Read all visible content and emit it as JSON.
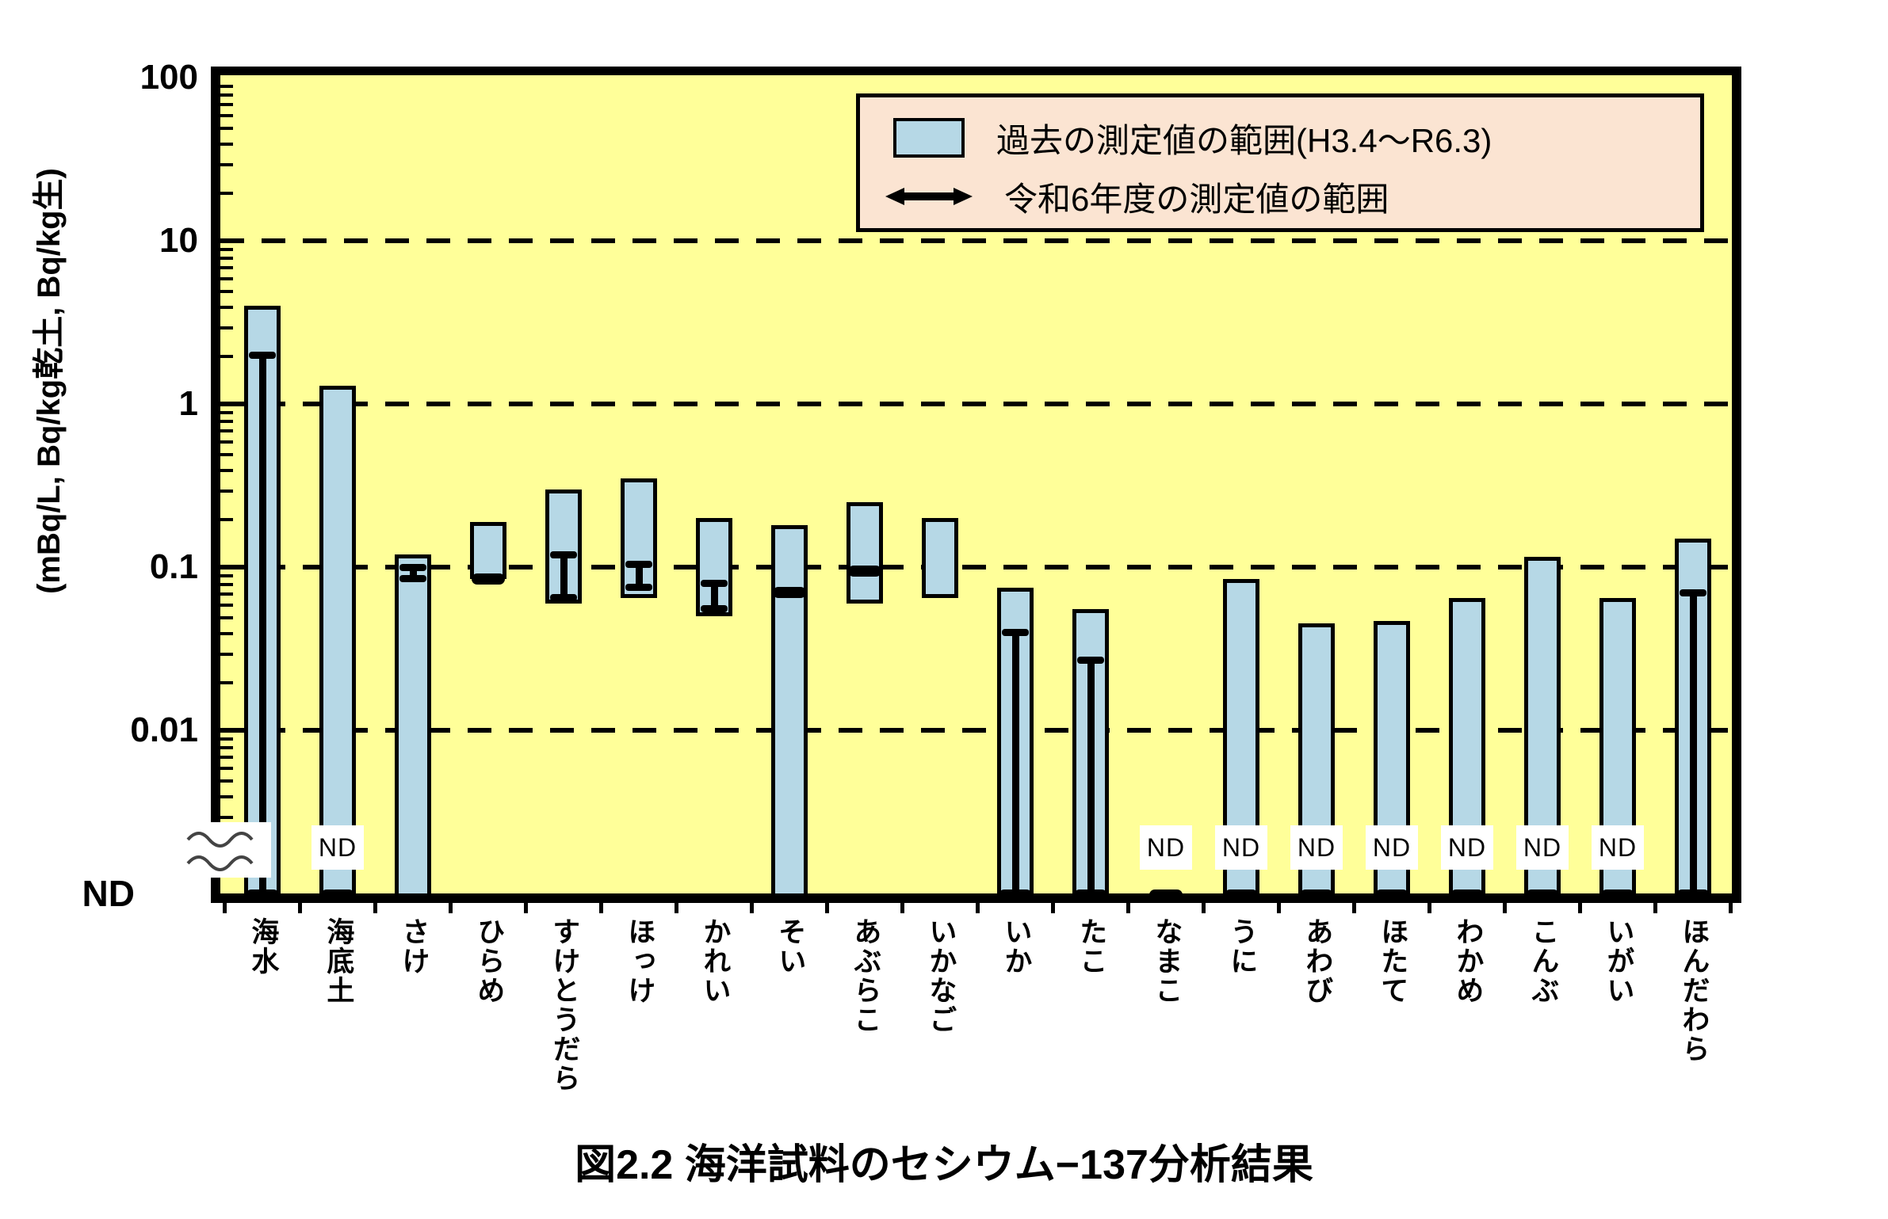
{
  "figure_title": "図2.2 海洋試料のセシウム−137分析結果",
  "chart_data": {
    "type": "bar",
    "subtype": "floating range bars on log axis with ND (non-detect) band",
    "title": "図2.2 海洋試料のセシウム−137分析結果",
    "ylabel": "(mBq/L, Bq/kg乾土, Bq/kg生)",
    "xlabel": "",
    "y_scale": "log10",
    "y_ticks": [
      "100",
      "10",
      "1",
      "0.1",
      "0.01",
      "ND"
    ],
    "y_axis_break": "wavy break between 0.01 and ND",
    "grid": "horizontal dashed lines at decades",
    "legend_position": "top-right inside plot",
    "nd_text": "ND",
    "legend": [
      {
        "swatch": "light-blue-box",
        "label": "過去の測定値の範囲(H3.4～R6.3)"
      },
      {
        "swatch": "black-double-arrow",
        "label": "令和6年度の測定値の範囲"
      }
    ],
    "series_notes": "past = 過去の測定値の範囲 (blue bar, low→high); r6 = 令和6年度の測定値の範囲 (black range line / point); low 'ND' means bar reaches the ND axis",
    "categories": [
      {
        "name": "海水",
        "past": {
          "low": "ND",
          "high": 4
        },
        "r6": {
          "type": "range",
          "low": "ND",
          "high": 2
        },
        "nd_label": false
      },
      {
        "name": "海底土",
        "past": {
          "low": "ND",
          "high": 1.3
        },
        "r6": {
          "type": "nd"
        },
        "nd_label": true
      },
      {
        "name": "さけ",
        "past": {
          "low": "ND",
          "high": 0.12
        },
        "r6": {
          "type": "range",
          "low": 0.085,
          "high": 0.1
        },
        "nd_label": false
      },
      {
        "name": "ひらめ",
        "past": {
          "low": 0.085,
          "high": 0.19
        },
        "r6": {
          "type": "point",
          "value": 0.085
        },
        "nd_label": false
      },
      {
        "name": "すけとうだら",
        "past": {
          "low": 0.06,
          "high": 0.3
        },
        "r6": {
          "type": "range",
          "low": 0.065,
          "high": 0.12
        },
        "nd_label": false
      },
      {
        "name": "ほっけ",
        "past": {
          "low": 0.065,
          "high": 0.35
        },
        "r6": {
          "type": "range",
          "low": 0.075,
          "high": 0.105
        },
        "nd_label": false
      },
      {
        "name": "かれい",
        "past": {
          "low": 0.05,
          "high": 0.2
        },
        "r6": {
          "type": "range",
          "low": 0.055,
          "high": 0.08
        },
        "nd_label": false
      },
      {
        "name": "そい",
        "past": {
          "low": "ND",
          "high": 0.18
        },
        "r6": {
          "type": "point",
          "value": 0.07
        },
        "nd_label": false
      },
      {
        "name": "あぶらこ",
        "past": {
          "low": 0.06,
          "high": 0.25
        },
        "r6": {
          "type": "point",
          "value": 0.095
        },
        "nd_label": false
      },
      {
        "name": "いかなご",
        "past": {
          "low": 0.065,
          "high": 0.2
        },
        "r6": null,
        "nd_label": false
      },
      {
        "name": "いか",
        "past": {
          "low": "ND",
          "high": 0.075
        },
        "r6": {
          "type": "range",
          "low": "ND",
          "high": 0.04
        },
        "nd_label": false
      },
      {
        "name": "たこ",
        "past": {
          "low": "ND",
          "high": 0.055
        },
        "r6": {
          "type": "range",
          "low": "ND",
          "high": 0.027
        },
        "nd_label": false
      },
      {
        "name": "なまこ",
        "past": null,
        "r6": {
          "type": "nd"
        },
        "nd_label": true
      },
      {
        "name": "うに",
        "past": {
          "low": "ND",
          "high": 0.085
        },
        "r6": {
          "type": "nd"
        },
        "nd_label": true
      },
      {
        "name": "あわび",
        "past": {
          "low": "ND",
          "high": 0.045
        },
        "r6": {
          "type": "nd"
        },
        "nd_label": true
      },
      {
        "name": "ほたて",
        "past": {
          "low": "ND",
          "high": 0.047
        },
        "r6": {
          "type": "nd"
        },
        "nd_label": true
      },
      {
        "name": "わかめ",
        "past": {
          "low": "ND",
          "high": 0.065
        },
        "r6": {
          "type": "nd"
        },
        "nd_label": true
      },
      {
        "name": "こんぶ",
        "past": {
          "low": "ND",
          "high": 0.115
        },
        "r6": {
          "type": "nd"
        },
        "nd_label": true
      },
      {
        "name": "いがい",
        "past": {
          "low": "ND",
          "high": 0.065
        },
        "r6": {
          "type": "nd"
        },
        "nd_label": true
      },
      {
        "name": "ほんだわら",
        "past": {
          "low": "ND",
          "high": 0.15
        },
        "r6": {
          "type": "range",
          "low": "ND",
          "high": 0.07
        },
        "nd_label": false
      }
    ],
    "colors": {
      "plot_background": "#ffff99",
      "bar_fill": "#b6d8e6",
      "bar_border": "#000000",
      "r6_marker": "#000000",
      "legend_background": "#fbe4d2",
      "grid_and_axes": "#000000",
      "nd_label_background": "#ffffff"
    }
  }
}
